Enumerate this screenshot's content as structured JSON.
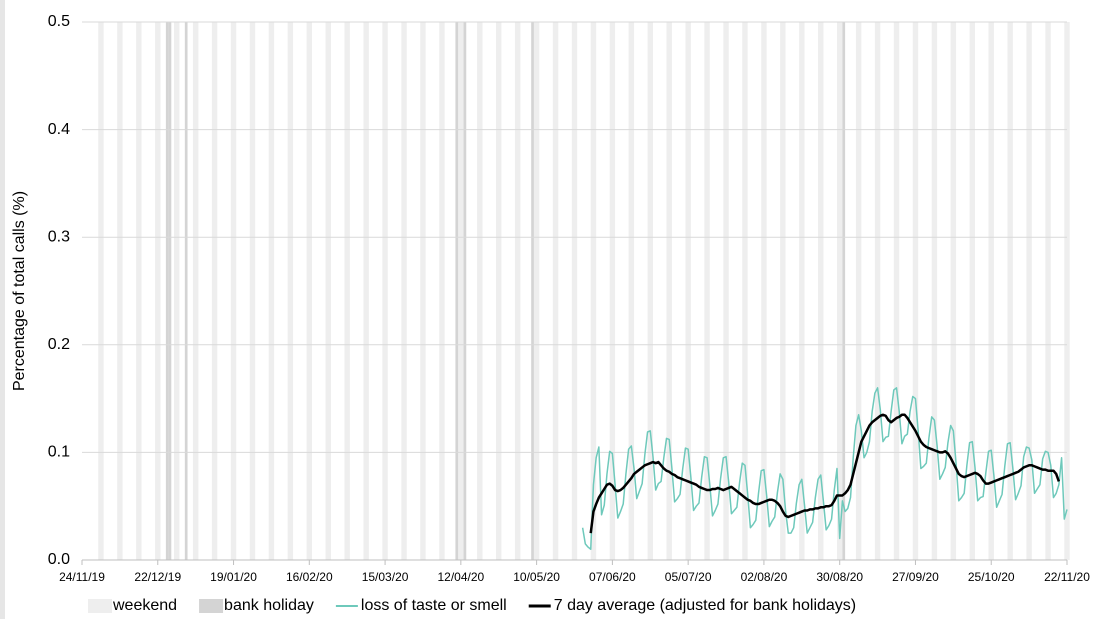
{
  "chart_data": {
    "type": "line",
    "y_label": "Percentage of total calls (%)",
    "xlim": [
      "24/11/19",
      "22/11/20"
    ],
    "xticks": [
      "24/11/19",
      "22/12/19",
      "19/01/20",
      "16/02/20",
      "15/03/20",
      "12/04/20",
      "10/05/20",
      "07/06/20",
      "05/07/20",
      "02/08/20",
      "30/08/20",
      "27/09/20",
      "25/10/20",
      "22/11/20"
    ],
    "ylim": [
      0,
      0.5
    ],
    "yticks": [
      {
        "value": 0,
        "label": "0.0"
      },
      0.1,
      0.2,
      0.3,
      0.4,
      0.5
    ],
    "grid": true,
    "bands": [
      {
        "name": "weekend",
        "color": "#eeeeee",
        "dates": [
          "30/11/19",
          "07/12/19",
          "14/12/19",
          "21/12/19",
          "28/12/19",
          "04/01/20",
          "11/01/20",
          "18/01/20",
          "25/01/20",
          "01/02/20",
          "08/02/20",
          "15/02/20",
          "22/02/20",
          "29/02/20",
          "07/03/20",
          "14/03/20",
          "21/03/20",
          "28/03/20",
          "04/04/20",
          "11/04/20",
          "18/04/20",
          "25/04/20",
          "02/05/20",
          "09/05/20",
          "16/05/20",
          "23/05/20",
          "30/05/20",
          "06/06/20",
          "13/06/20",
          "20/06/20",
          "27/06/20",
          "04/07/20",
          "11/07/20",
          "18/07/20",
          "25/07/20",
          "01/08/20",
          "08/08/20",
          "15/08/20",
          "22/08/20",
          "29/08/20",
          "05/09/20",
          "12/09/20",
          "19/09/20",
          "26/09/20",
          "03/10/20",
          "10/10/20",
          "17/10/20",
          "24/10/20",
          "31/10/20",
          "07/11/20",
          "14/11/20",
          "21/11/20"
        ]
      },
      {
        "name": "bank holiday",
        "color": "#d4d4d4",
        "dates": [
          "25/12/19",
          "26/12/19",
          "01/01/20",
          "10/04/20",
          "13/04/20",
          "08/05/20",
          "31/08/20"
        ]
      }
    ],
    "x": [
      "27/05/20",
      "28/05/20",
      "29/05/20",
      "30/05/20",
      "31/05/20",
      "01/06/20",
      "02/06/20",
      "03/06/20",
      "04/06/20",
      "05/06/20",
      "06/06/20",
      "07/06/20",
      "08/06/20",
      "09/06/20",
      "10/06/20",
      "11/06/20",
      "12/06/20",
      "13/06/20",
      "14/06/20",
      "15/06/20",
      "16/06/20",
      "17/06/20",
      "18/06/20",
      "19/06/20",
      "20/06/20",
      "21/06/20",
      "22/06/20",
      "23/06/20",
      "24/06/20",
      "25/06/20",
      "26/06/20",
      "27/06/20",
      "28/06/20",
      "29/06/20",
      "30/06/20",
      "01/07/20",
      "02/07/20",
      "03/07/20",
      "04/07/20",
      "05/07/20",
      "06/07/20",
      "07/07/20",
      "08/07/20",
      "09/07/20",
      "10/07/20",
      "11/07/20",
      "12/07/20",
      "13/07/20",
      "14/07/20",
      "15/07/20",
      "16/07/20",
      "17/07/20",
      "18/07/20",
      "19/07/20",
      "20/07/20",
      "21/07/20",
      "22/07/20",
      "23/07/20",
      "24/07/20",
      "25/07/20",
      "26/07/20",
      "27/07/20",
      "28/07/20",
      "29/07/20",
      "30/07/20",
      "31/07/20",
      "01/08/20",
      "02/08/20",
      "03/08/20",
      "04/08/20",
      "05/08/20",
      "06/08/20",
      "07/08/20",
      "08/08/20",
      "09/08/20",
      "10/08/20",
      "11/08/20",
      "12/08/20",
      "13/08/20",
      "14/08/20",
      "15/08/20",
      "16/08/20",
      "17/08/20",
      "18/08/20",
      "19/08/20",
      "20/08/20",
      "21/08/20",
      "22/08/20",
      "23/08/20",
      "24/08/20",
      "25/08/20",
      "26/08/20",
      "27/08/20",
      "28/08/20",
      "29/08/20",
      "30/08/20",
      "31/08/20",
      "01/09/20",
      "02/09/20",
      "03/09/20",
      "04/09/20",
      "05/09/20",
      "06/09/20",
      "07/09/20",
      "08/09/20",
      "09/09/20",
      "10/09/20",
      "11/09/20",
      "12/09/20",
      "13/09/20",
      "14/09/20",
      "15/09/20",
      "16/09/20",
      "17/09/20",
      "18/09/20",
      "19/09/20",
      "20/09/20",
      "21/09/20",
      "22/09/20",
      "23/09/20",
      "24/09/20",
      "25/09/20",
      "26/09/20",
      "27/09/20",
      "28/09/20",
      "29/09/20",
      "30/09/20",
      "01/10/20",
      "02/10/20",
      "03/10/20",
      "04/10/20",
      "05/10/20",
      "06/10/20",
      "07/10/20",
      "08/10/20",
      "09/10/20",
      "10/10/20",
      "11/10/20",
      "12/10/20",
      "13/10/20",
      "14/10/20",
      "15/10/20",
      "16/10/20",
      "17/10/20",
      "18/10/20",
      "19/10/20",
      "20/10/20",
      "21/10/20",
      "22/10/20",
      "23/10/20",
      "24/10/20",
      "25/10/20",
      "26/10/20",
      "27/10/20",
      "28/10/20",
      "29/10/20",
      "30/10/20",
      "31/10/20",
      "01/11/20",
      "02/11/20",
      "03/11/20",
      "04/11/20",
      "05/11/20",
      "06/11/20",
      "07/11/20",
      "08/11/20",
      "09/11/20",
      "10/11/20",
      "11/11/20",
      "12/11/20",
      "13/11/20",
      "14/11/20",
      "15/11/20",
      "16/11/20",
      "17/11/20",
      "18/11/20",
      "19/11/20",
      "20/11/20",
      "21/11/20",
      "22/11/20"
    ],
    "series": [
      {
        "name": "loss of taste or smell",
        "color": "#6ec9bb",
        "width": 1.5,
        "values": [
          0.03,
          0.015,
          0.012,
          0.01,
          0.07,
          0.095,
          0.105,
          0.042,
          0.051,
          0.08,
          0.101,
          0.099,
          0.07,
          0.039,
          0.045,
          0.052,
          0.08,
          0.103,
          0.106,
          0.085,
          0.057,
          0.064,
          0.071,
          0.098,
          0.119,
          0.12,
          0.096,
          0.065,
          0.071,
          0.073,
          0.095,
          0.113,
          0.112,
          0.085,
          0.054,
          0.057,
          0.061,
          0.085,
          0.104,
          0.103,
          0.077,
          0.046,
          0.05,
          0.053,
          0.077,
          0.096,
          0.095,
          0.07,
          0.041,
          0.046,
          0.052,
          0.076,
          0.095,
          0.096,
          0.072,
          0.043,
          0.046,
          0.049,
          0.072,
          0.09,
          0.088,
          0.061,
          0.03,
          0.033,
          0.037,
          0.062,
          0.083,
          0.084,
          0.06,
          0.031,
          0.036,
          0.04,
          0.063,
          0.08,
          0.075,
          0.046,
          0.025,
          0.025,
          0.03,
          0.053,
          0.07,
          0.075,
          0.051,
          0.025,
          0.03,
          0.035,
          0.058,
          0.075,
          0.079,
          0.054,
          0.028,
          0.032,
          0.038,
          0.065,
          0.085,
          0.02,
          0.055,
          0.045,
          0.048,
          0.058,
          0.095,
          0.125,
          0.135,
          0.12,
          0.095,
          0.1,
          0.11,
          0.138,
          0.155,
          0.16,
          0.14,
          0.11,
          0.114,
          0.115,
          0.138,
          0.158,
          0.16,
          0.138,
          0.108,
          0.115,
          0.117,
          0.138,
          0.152,
          0.15,
          0.12,
          0.085,
          0.087,
          0.09,
          0.114,
          0.133,
          0.13,
          0.106,
          0.075,
          0.08,
          0.086,
          0.109,
          0.125,
          0.12,
          0.09,
          0.055,
          0.058,
          0.062,
          0.088,
          0.109,
          0.11,
          0.086,
          0.055,
          0.058,
          0.059,
          0.081,
          0.101,
          0.102,
          0.078,
          0.049,
          0.055,
          0.061,
          0.087,
          0.108,
          0.109,
          0.085,
          0.056,
          0.062,
          0.069,
          0.096,
          0.105,
          0.104,
          0.093,
          0.062,
          0.066,
          0.07,
          0.094,
          0.101,
          0.1,
          0.088,
          0.058,
          0.062,
          0.07,
          0.095,
          0.038,
          0.047
        ]
      },
      {
        "name": "7 day average (adjusted for bank holidays)",
        "color": "#000000",
        "width": 2.5,
        "values": [
          null,
          null,
          null,
          0.025,
          0.045,
          0.052,
          0.058,
          0.062,
          0.066,
          0.07,
          0.071,
          0.069,
          0.065,
          0.064,
          0.065,
          0.067,
          0.07,
          0.073,
          0.076,
          0.08,
          0.082,
          0.084,
          0.086,
          0.088,
          0.089,
          0.09,
          0.091,
          0.09,
          0.091,
          0.088,
          0.085,
          0.083,
          0.082,
          0.08,
          0.079,
          0.077,
          0.076,
          0.075,
          0.074,
          0.073,
          0.072,
          0.071,
          0.07,
          0.068,
          0.067,
          0.066,
          0.065,
          0.065,
          0.066,
          0.066,
          0.067,
          0.066,
          0.065,
          0.066,
          0.067,
          0.068,
          0.066,
          0.064,
          0.062,
          0.06,
          0.058,
          0.056,
          0.055,
          0.053,
          0.052,
          0.052,
          0.053,
          0.054,
          0.055,
          0.056,
          0.056,
          0.055,
          0.053,
          0.05,
          0.045,
          0.041,
          0.04,
          0.041,
          0.042,
          0.043,
          0.044,
          0.045,
          0.046,
          0.046,
          0.047,
          0.047,
          0.048,
          0.048,
          0.049,
          0.049,
          0.05,
          0.05,
          0.051,
          0.055,
          0.06,
          0.06,
          0.06,
          0.062,
          0.065,
          0.07,
          0.08,
          0.09,
          0.1,
          0.11,
          0.115,
          0.12,
          0.125,
          0.128,
          0.13,
          0.132,
          0.134,
          0.135,
          0.134,
          0.13,
          0.128,
          0.13,
          0.132,
          0.133,
          0.135,
          0.135,
          0.132,
          0.128,
          0.124,
          0.12,
          0.115,
          0.11,
          0.107,
          0.105,
          0.104,
          0.103,
          0.102,
          0.101,
          0.1,
          0.1,
          0.101,
          0.099,
          0.095,
          0.09,
          0.085,
          0.08,
          0.078,
          0.077,
          0.078,
          0.079,
          0.08,
          0.081,
          0.08,
          0.078,
          0.074,
          0.071,
          0.071,
          0.072,
          0.073,
          0.074,
          0.075,
          0.076,
          0.077,
          0.078,
          0.079,
          0.08,
          0.081,
          0.082,
          0.084,
          0.086,
          0.087,
          0.088,
          0.088,
          0.087,
          0.086,
          0.085,
          0.084,
          0.084,
          0.083,
          0.083,
          0.083,
          0.08,
          0.073,
          null,
          null,
          null
        ]
      }
    ]
  }
}
